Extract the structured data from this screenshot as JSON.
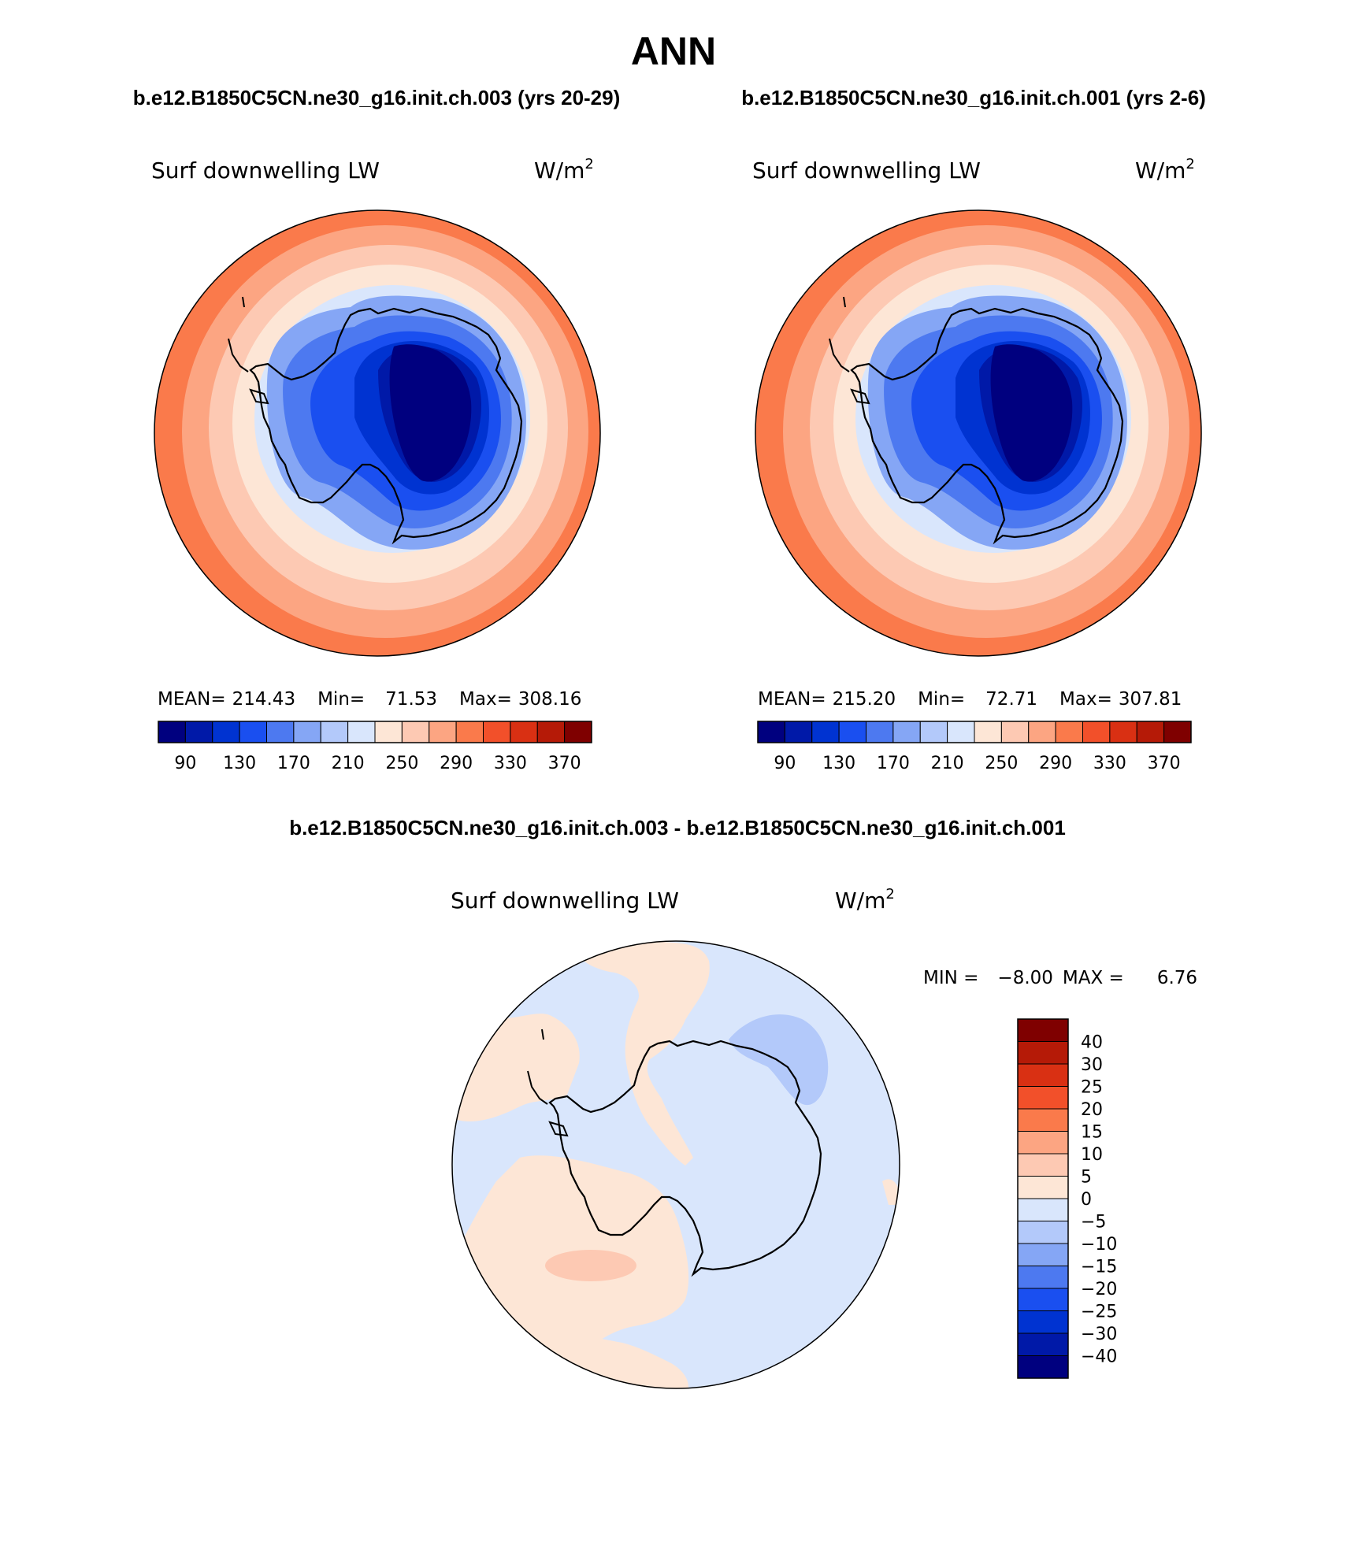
{
  "season": "ANN",
  "panels": [
    {
      "case": "b.e12.B1850C5CN.ne30_g16.init.ch.003 (yrs 20-29)",
      "variable": "Surf downwelling LW",
      "units_base": "W/m",
      "units_exp": "2",
      "stats": {
        "mean_label": "MEAN=",
        "mean": "214.43",
        "min_label": "Min=",
        "min": "71.53",
        "max_label": "Max=",
        "max": "308.16"
      }
    },
    {
      "case": "b.e12.B1850C5CN.ne30_g16.init.ch.001 (yrs 2-6)",
      "variable": "Surf downwelling LW",
      "units_base": "W/m",
      "units_exp": "2",
      "stats": {
        "mean_label": "MEAN=",
        "mean": "215.20",
        "min_label": "Min=",
        "min": "72.71",
        "max_label": "Max=",
        "max": "307.81"
      }
    }
  ],
  "diff_panel": {
    "case": "b.e12.B1850C5CN.ne30_g16.init.ch.003 - b.e12.B1850C5CN.ne30_g16.init.ch.001",
    "variable": "Surf downwelling LW",
    "units_base": "W/m",
    "units_exp": "2",
    "stats": {
      "min_label": "MIN =",
      "min": "−8.00",
      "max_label": "MAX =",
      "max": "6.76"
    }
  },
  "colorbar_abs": {
    "colors": [
      "#00007f",
      "#0019a8",
      "#0033d1",
      "#1a4ff0",
      "#4d79f0",
      "#85a6f5",
      "#b3c9fa",
      "#d9e6fc",
      "#fde6d6",
      "#fdc9b3",
      "#fca582",
      "#fa7a4b",
      "#f2502a",
      "#d93013",
      "#b51a07",
      "#7f0000"
    ],
    "ticks": [
      "90",
      "130",
      "170",
      "210",
      "250",
      "290",
      "330",
      "370"
    ]
  },
  "colorbar_diff": {
    "colors": [
      "#00007f",
      "#0019a8",
      "#0033d1",
      "#1a4ff0",
      "#4d79f0",
      "#85a6f5",
      "#b3c9fa",
      "#d9e6fc",
      "#fde6d6",
      "#fdc9b3",
      "#fca582",
      "#fa7a4b",
      "#f2502a",
      "#d93013",
      "#b51a07",
      "#7f0000"
    ],
    "ticks": [
      "40",
      "30",
      "25",
      "20",
      "15",
      "10",
      "5",
      "0",
      "−5",
      "−10",
      "−15",
      "−20",
      "−25",
      "−30",
      "−40"
    ]
  }
}
